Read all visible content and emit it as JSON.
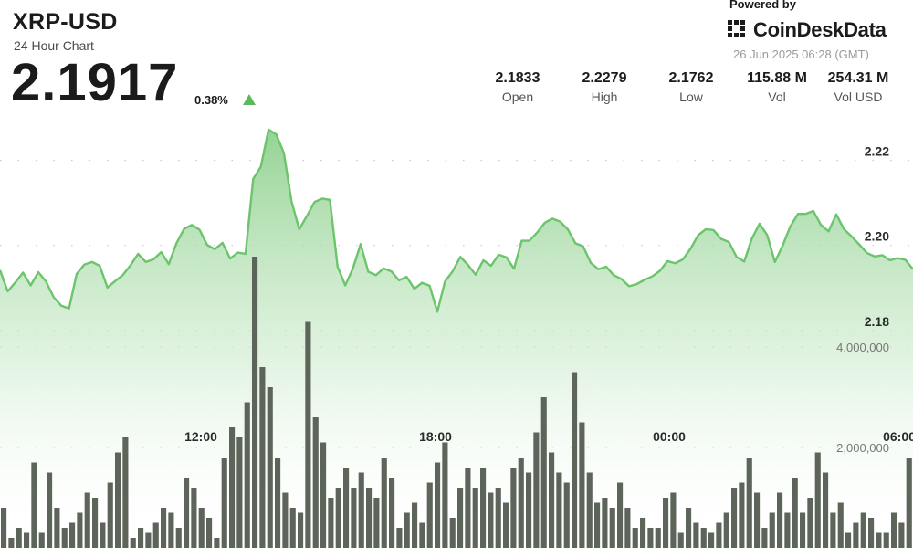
{
  "header": {
    "symbol": "XRP-USD",
    "subtitle": "24 Hour Chart",
    "price": "2.1917",
    "change": "0.38%",
    "change_direction": "up",
    "powered_by": "Powered by",
    "brand": "CoinDeskData",
    "timestamp": "26 Jun 2025 06:28 (GMT)"
  },
  "stats": [
    {
      "value": "2.1833",
      "label": "Open"
    },
    {
      "value": "2.2279",
      "label": "High"
    },
    {
      "value": "2.1762",
      "label": "Low"
    },
    {
      "value": "115.88 M",
      "label": "Vol"
    },
    {
      "value": "254.31 M",
      "label": "Vol USD"
    }
  ],
  "colors": {
    "line": "#6cc46c",
    "area_top": "#8fd18f",
    "bars": "#5d6459",
    "up_arrow": "#5cb85c"
  },
  "chart_data": {
    "type": "line",
    "x_ticks": [
      "12:00",
      "18:00",
      "00:00",
      "06:00"
    ],
    "y_price_ticks": [
      "2.22",
      "2.20",
      "2.18"
    ],
    "y_volume_ticks": [
      "4,000,000",
      "2,000,000"
    ],
    "price_ylim": [
      2.1585,
      2.2405
    ],
    "volume_ylim": [
      0,
      6000000
    ],
    "grid": "dotted horizontal",
    "series": [
      {
        "kind": "price",
        "values": [
          2.1942,
          2.1892,
          2.1913,
          2.1936,
          2.1906,
          2.1937,
          2.1915,
          2.1878,
          2.1858,
          2.1852,
          2.1933,
          2.1955,
          2.1961,
          2.1952,
          2.1901,
          2.1916,
          2.193,
          2.1953,
          2.198,
          2.1961,
          2.1967,
          2.1984,
          2.1956,
          2.2005,
          2.2039,
          2.2048,
          2.2037,
          2.2001,
          2.1991,
          2.2006,
          2.1969,
          2.1983,
          2.198,
          2.2156,
          2.2185,
          2.2272,
          2.2261,
          2.2217,
          2.2103,
          2.2038,
          2.2069,
          2.2102,
          2.211,
          2.2107,
          2.195,
          2.1906,
          2.1946,
          2.2003,
          2.1938,
          2.193,
          2.1946,
          2.1939,
          2.1918,
          2.1926,
          2.1898,
          2.1912,
          2.1905,
          2.1844,
          2.1915,
          2.1939,
          2.1973,
          2.1954,
          2.1931,
          2.1965,
          2.1952,
          2.1978,
          2.1972,
          2.1945,
          2.2011,
          2.2011,
          2.203,
          2.2053,
          2.2063,
          2.2056,
          2.2038,
          2.2005,
          2.1998,
          2.1959,
          2.1944,
          2.195,
          2.193,
          2.1921,
          2.1904,
          2.1909,
          2.1919,
          2.1927,
          2.194,
          2.1963,
          2.1958,
          2.1967,
          2.1992,
          2.2024,
          2.2038,
          2.2036,
          2.2015,
          2.2008,
          2.1973,
          2.1962,
          2.2016,
          2.2051,
          2.2024,
          2.1961,
          2.1999,
          2.2044,
          2.2074,
          2.2074,
          2.2081,
          2.2048,
          2.2033,
          2.2073,
          2.2038,
          2.2021,
          2.2002,
          2.1982,
          2.1974,
          2.1977,
          2.1965,
          2.197,
          2.1966,
          2.1944
        ]
      },
      {
        "kind": "volume",
        "values": [
          800000,
          200000,
          400000,
          300000,
          1700000,
          300000,
          1500000,
          800000,
          400000,
          500000,
          700000,
          1100000,
          1000000,
          500000,
          1300000,
          1900000,
          2200000,
          200000,
          400000,
          300000,
          500000,
          800000,
          700000,
          400000,
          1400000,
          1200000,
          800000,
          600000,
          200000,
          1800000,
          2400000,
          2200000,
          2900000,
          5800000,
          3600000,
          3200000,
          1800000,
          1100000,
          800000,
          700000,
          4500000,
          2600000,
          2100000,
          1000000,
          1200000,
          1600000,
          1200000,
          1500000,
          1200000,
          1000000,
          1800000,
          1400000,
          400000,
          700000,
          900000,
          500000,
          1300000,
          1700000,
          2100000,
          600000,
          1200000,
          1600000,
          1200000,
          1600000,
          1100000,
          1200000,
          900000,
          1600000,
          1800000,
          1500000,
          2300000,
          3000000,
          1900000,
          1500000,
          1300000,
          3500000,
          2500000,
          1500000,
          900000,
          1000000,
          800000,
          1300000,
          800000,
          400000,
          600000,
          400000,
          400000,
          1000000,
          1100000,
          300000,
          800000,
          500000,
          400000,
          300000,
          500000,
          700000,
          1200000,
          1300000,
          1800000,
          1100000,
          400000,
          700000,
          1100000,
          700000,
          1400000,
          700000,
          1000000,
          1900000,
          1500000,
          700000,
          900000,
          300000,
          500000,
          700000,
          600000,
          300000,
          300000,
          700000,
          500000,
          1800000
        ]
      }
    ]
  }
}
